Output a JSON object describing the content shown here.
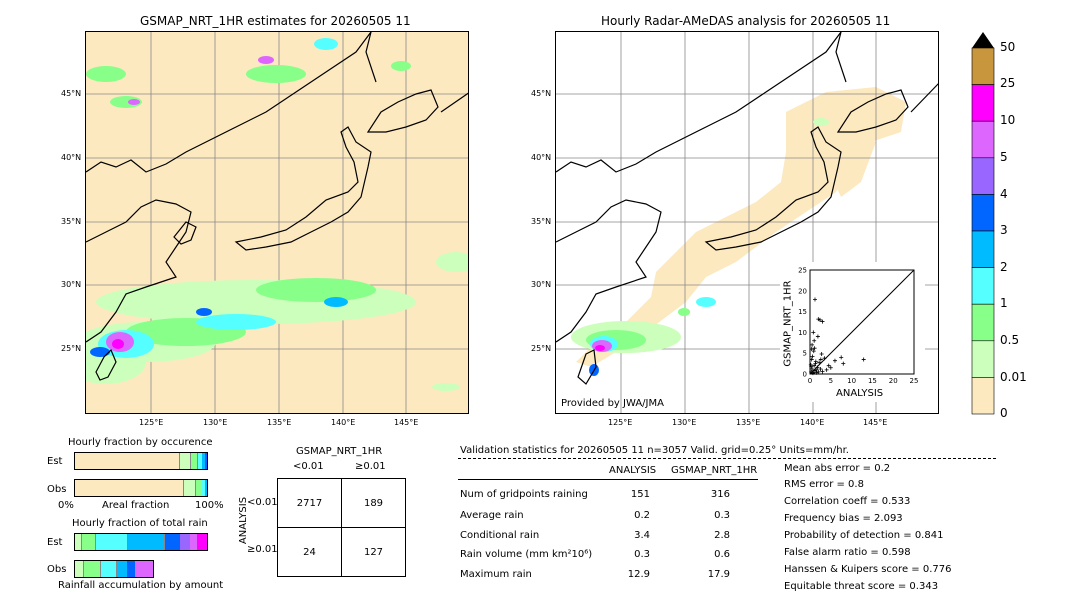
{
  "left_map": {
    "title": "GSMAP_NRT_1HR estimates for 20260505 11",
    "lat_labels": [
      "45°N",
      "40°N",
      "35°N",
      "30°N",
      "25°N"
    ],
    "lon_labels": [
      "125°E",
      "130°E",
      "135°E",
      "140°E",
      "145°E"
    ]
  },
  "right_map": {
    "title": "Hourly Radar-AMeDAS analysis for 20260505 11",
    "lat_labels": [
      "45°N",
      "40°N",
      "35°N",
      "30°N",
      "25°N"
    ],
    "lon_labels": [
      "125°E",
      "130°E",
      "135°E",
      "140°E",
      "145°E"
    ],
    "credit": "Provided by JWA/JMA"
  },
  "colorbar": {
    "labels": [
      "50",
      "25",
      "10",
      "5",
      "4",
      "3",
      "2",
      "1",
      "0.5",
      "0.01",
      "0"
    ],
    "colors": [
      "#c8963c",
      "#ff00ff",
      "#dd66ff",
      "#9966ff",
      "#0066ff",
      "#00bbff",
      "#55ffff",
      "#88ff88",
      "#ccffbb",
      "#fde9c0"
    ]
  },
  "fraction_panel": {
    "occurrence_title": "Hourly fraction by occurence",
    "total_title": "Hourly fraction of total rain",
    "accum_label": "Rainfall accumulation by amount",
    "est_label": "Est",
    "obs_label": "Obs",
    "axis_left": "0%",
    "axis_mid": "Areal fraction",
    "axis_right": "100%"
  },
  "contingency": {
    "header": "GSMAP_NRT_1HR",
    "col_lt": "<0.01",
    "col_ge": "≥0.01",
    "row_axis": "ANALYSIS",
    "row_lt": "<0.01",
    "row_ge": "≥0.01",
    "cells": [
      "2717",
      "189",
      "24",
      "127"
    ]
  },
  "validation": {
    "header": "Validation statistics for 20260505 11  n=3057 Valid. grid=0.25° Units=mm/hr.",
    "col_analysis": "ANALYSIS",
    "col_gsmap": "GSMAP_NRT_1HR",
    "rows": [
      {
        "label": "Num of gridpoints raining",
        "a": "151",
        "g": "316"
      },
      {
        "label": "Average rain",
        "a": "0.2",
        "g": "0.3"
      },
      {
        "label": "Conditional rain",
        "a": "3.4",
        "g": "2.8"
      },
      {
        "label": "Rain volume (mm km²10⁶)",
        "a": "0.3",
        "g": "0.6"
      },
      {
        "label": "Maximum rain",
        "a": "12.9",
        "g": "17.9"
      }
    ],
    "scores": [
      "Mean abs error =    0.2",
      "RMS error =    0.8",
      "Correlation coeff =  0.533",
      "Frequency bias =  2.093",
      "Probability of detection =  0.841",
      "False alarm ratio =  0.598",
      "Hanssen & Kuipers score =  0.776",
      "Equitable threat score =  0.343"
    ]
  },
  "chart_data": {
    "type": "scatter",
    "xlabel": "ANALYSIS",
    "ylabel": "GSMAP_NRT_1HR",
    "xlim": [
      0,
      25
    ],
    "ylim": [
      0,
      25
    ],
    "ticks": [
      "0",
      "5",
      "10",
      "15",
      "20",
      "25"
    ],
    "points": [
      [
        0.3,
        0.5
      ],
      [
        0.5,
        1.2
      ],
      [
        0.8,
        0.4
      ],
      [
        1.0,
        2.0
      ],
      [
        1.2,
        0.8
      ],
      [
        0.4,
        3.5
      ],
      [
        0.6,
        4.2
      ],
      [
        1.5,
        1.0
      ],
      [
        2.0,
        0.5
      ],
      [
        0.2,
        2.2
      ],
      [
        1.8,
        1.6
      ],
      [
        2.5,
        1.2
      ],
      [
        0.9,
        5.5
      ],
      [
        1.1,
        6.2
      ],
      [
        3.0,
        0.6
      ],
      [
        0.7,
        0.2
      ],
      [
        1.4,
        3.0
      ],
      [
        2.2,
        2.8
      ],
      [
        0.3,
        1.8
      ],
      [
        1.6,
        0.3
      ],
      [
        4.5,
        2.0
      ],
      [
        6.0,
        3.2
      ],
      [
        7.5,
        4.0
      ],
      [
        5.0,
        1.5
      ],
      [
        12.9,
        3.5
      ],
      [
        8.0,
        2.5
      ],
      [
        2.8,
        4.8
      ],
      [
        3.5,
        3.8
      ],
      [
        0.5,
        7.0
      ],
      [
        1.0,
        8.0
      ],
      [
        1.2,
        17.9
      ],
      [
        2.0,
        13.2
      ],
      [
        2.4,
        13.0
      ],
      [
        3.0,
        12.6
      ],
      [
        0.8,
        10.0
      ],
      [
        1.9,
        9.0
      ],
      [
        4.0,
        1.0
      ],
      [
        0.4,
        6.0
      ],
      [
        2.6,
        3.5
      ],
      [
        1.3,
        2.5
      ]
    ]
  }
}
